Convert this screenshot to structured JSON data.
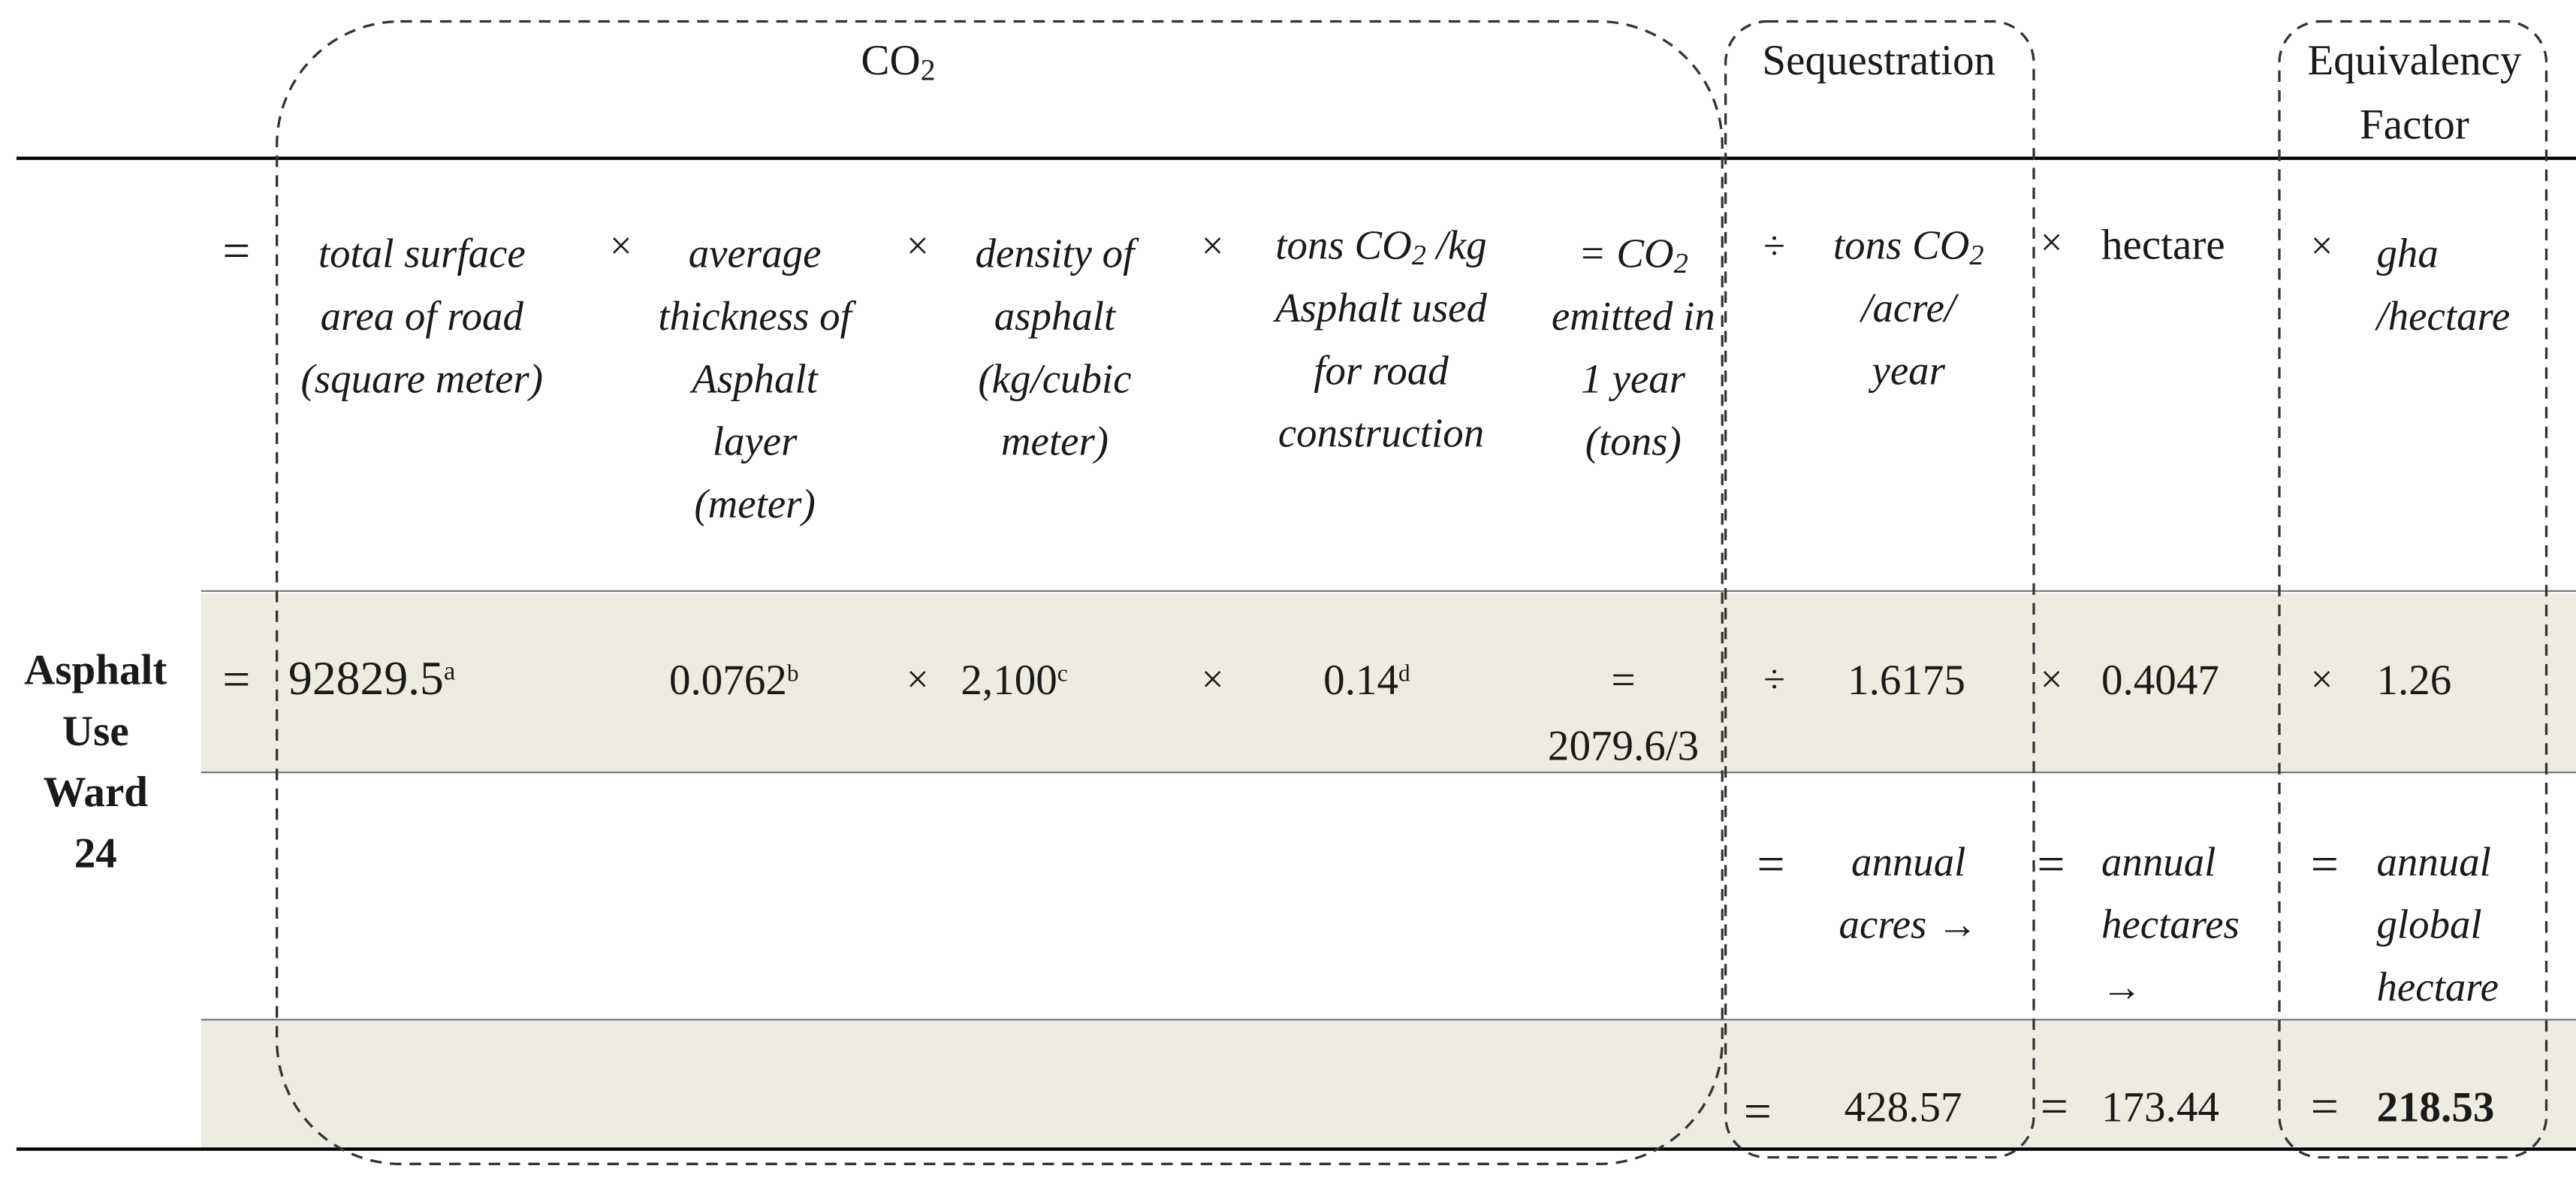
{
  "header": {
    "co2_group": "CO",
    "co2_group_sub": "2",
    "sequestration_group": "Sequestration",
    "equivalency_line1": "Equivalency",
    "equivalency_line2": "Factor"
  },
  "row_label": {
    "line1": "Asphalt",
    "line2": "Use",
    "line3": "Ward",
    "line4": "24"
  },
  "operators": {
    "equals": "=",
    "times": "×",
    "divide": "÷"
  },
  "formula_row": {
    "surface_area": "total surface area of road (square meter)",
    "thickness": "average thickness of Asphalt layer (meter)",
    "density": "density of asphalt (kg/cubic meter)",
    "tons_co2_pre": "tons CO",
    "tons_co2_sub": "2",
    "tons_co2_post": " /kg Asphalt used for road construction",
    "co2_emitted_pre": "= CO",
    "co2_emitted_sub": "2",
    "co2_emitted_post": " emitted in 1 year (tons)",
    "seq_pre": "tons CO",
    "seq_sub": "2",
    "seq_post": " /acre/ year",
    "hectare": "hectare",
    "gha": "gha /hectare"
  },
  "values_row": {
    "surface_area": "92829.5",
    "surface_area_note": "a",
    "thickness": "0.0762",
    "thickness_note": "b",
    "density": "2,100",
    "density_note": "c",
    "tons_co2": "0.14",
    "tons_co2_note": "d",
    "co2_emitted": "2079.6/3",
    "sequestration": "1.6175",
    "hectare": "0.4047",
    "gha": "1.26"
  },
  "result_labels": {
    "annual_acres": "annual acres →",
    "annual_hectares": "annual hectares →",
    "annual_gha": "annual global hectare"
  },
  "results_row": {
    "acres": "428.57",
    "hectares": "173.44",
    "gha": "218.53"
  }
}
